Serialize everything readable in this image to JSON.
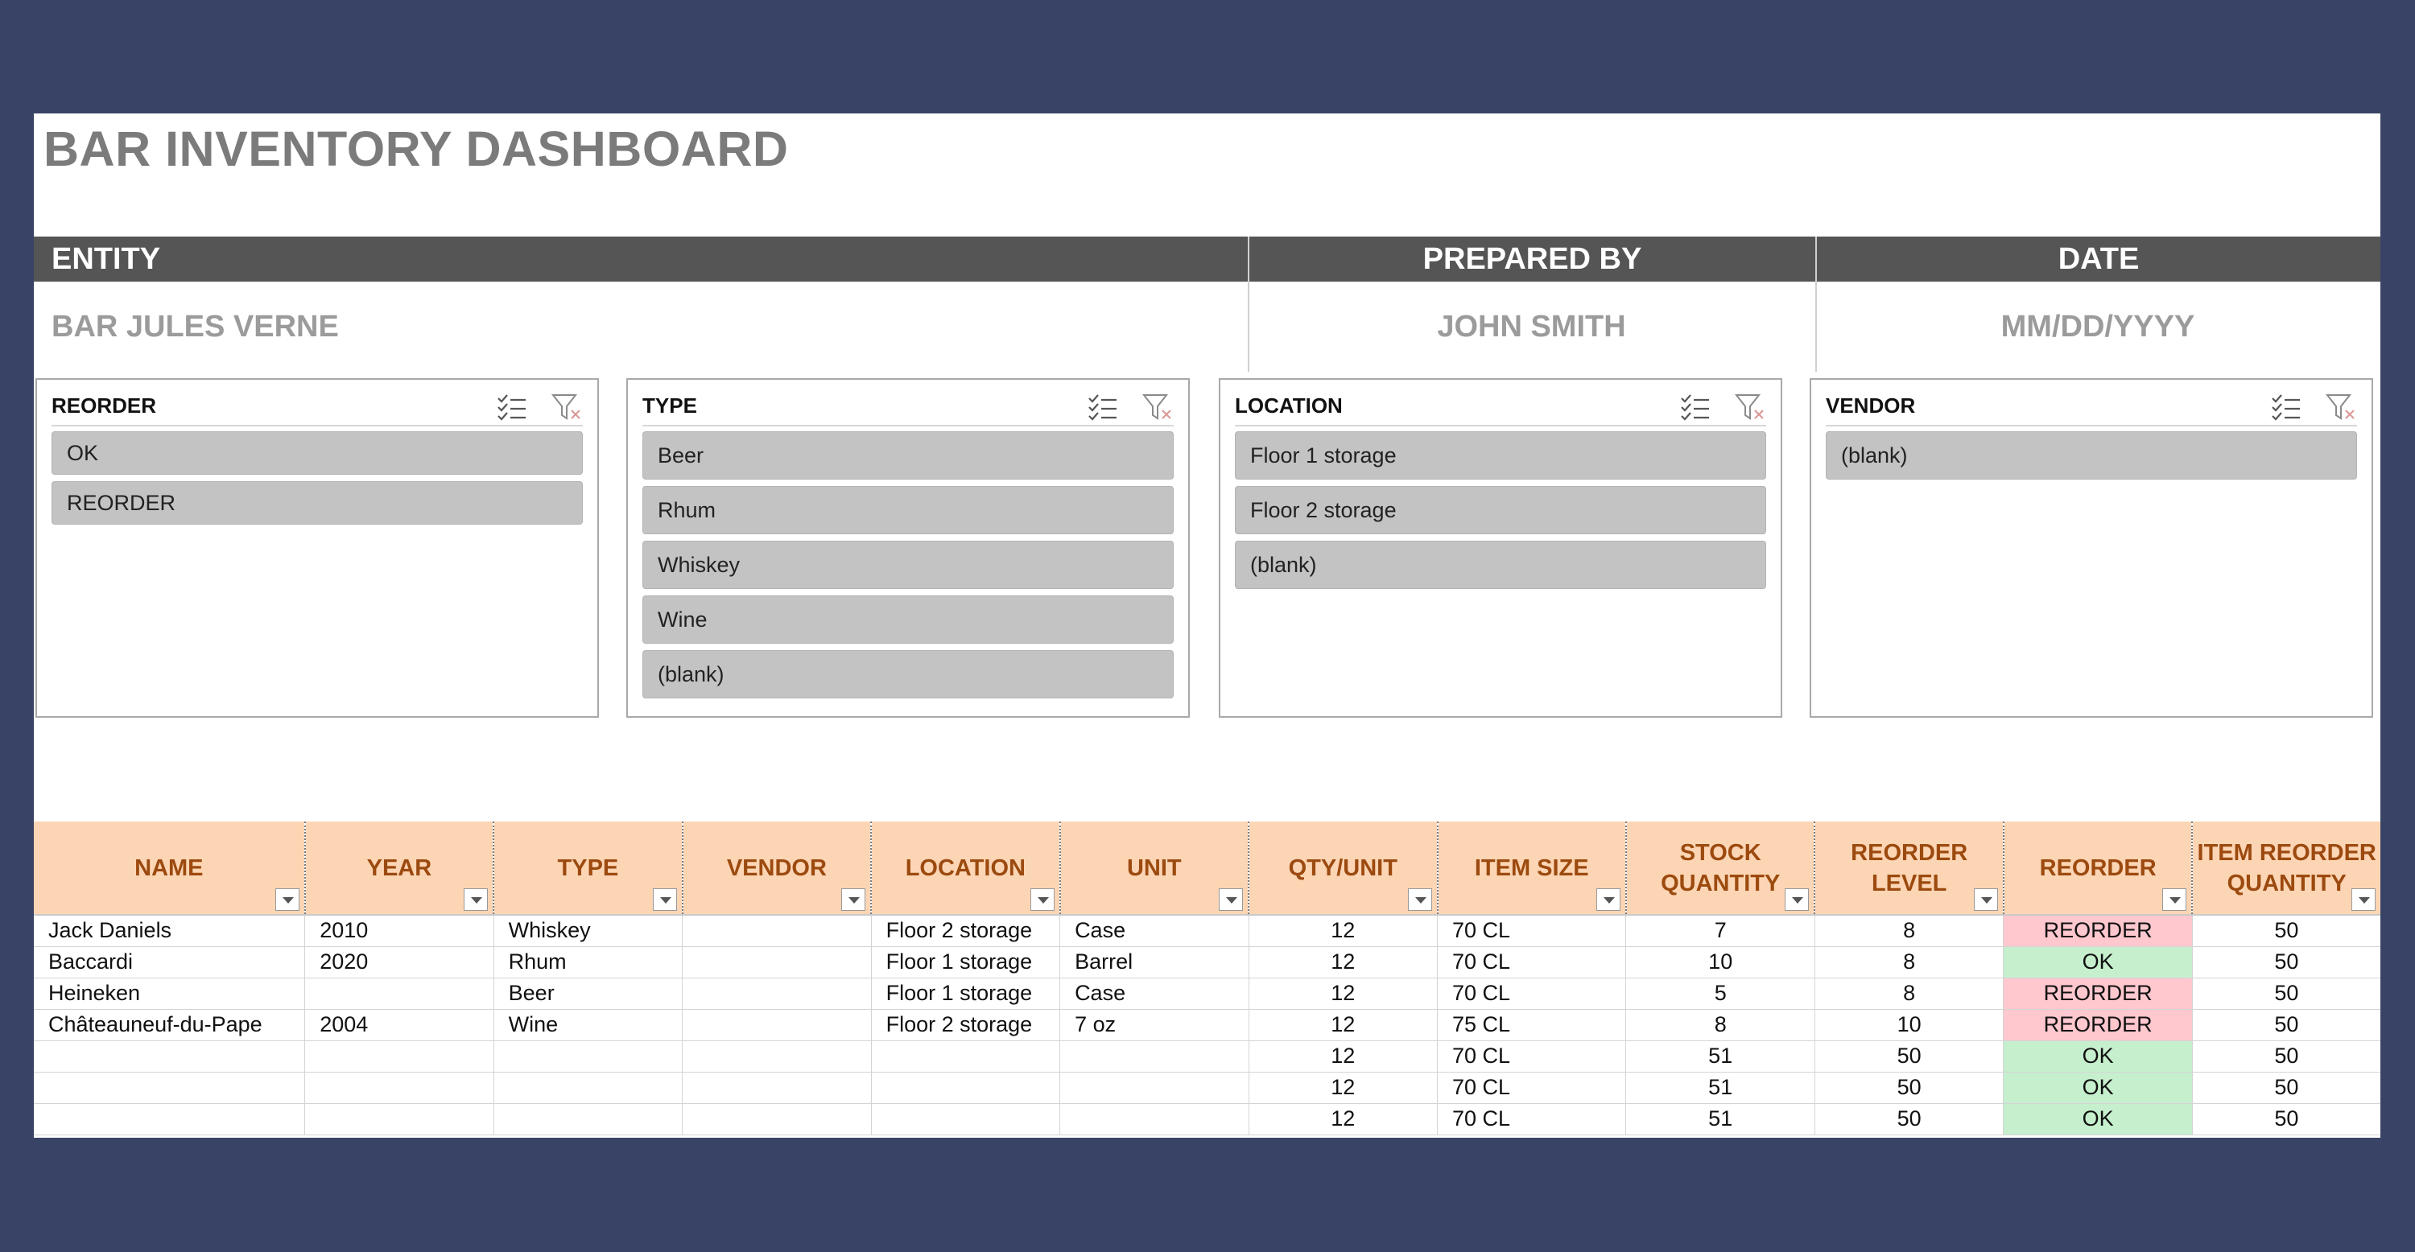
{
  "title": "BAR INVENTORY DASHBOARD",
  "header": {
    "entity_label": "ENTITY",
    "entity_value": "BAR JULES VERNE",
    "prepared_by_label": "PREPARED BY",
    "prepared_by_value": "JOHN SMITH",
    "date_label": "DATE",
    "date_value": "MM/DD/YYYY"
  },
  "slicers": {
    "reorder": {
      "title": "REORDER",
      "items": [
        "OK",
        "REORDER"
      ]
    },
    "type": {
      "title": "TYPE",
      "items": [
        "Beer",
        "Rhum",
        "Whiskey",
        "Wine",
        "(blank)"
      ]
    },
    "location": {
      "title": "LOCATION",
      "items": [
        "Floor 1 storage",
        "Floor 2 storage",
        "(blank)"
      ]
    },
    "vendor": {
      "title": "VENDOR",
      "items": [
        "(blank)"
      ]
    }
  },
  "icons": {
    "multi_select": "multi-select-icon",
    "clear_filter": "clear-filter-icon",
    "dropdown": "filter-dropdown-icon"
  },
  "colors": {
    "background": "#394366",
    "header_bar": "#555555",
    "table_header_bg": "#fcd5b4",
    "table_header_text": "#9c4a0f",
    "reorder_bg": "#ffc7ce",
    "reorder_text": "#9c0006",
    "ok_bg": "#c6efce",
    "ok_text": "#006100"
  },
  "table": {
    "columns": [
      "NAME",
      "YEAR",
      "TYPE",
      "VENDOR",
      "LOCATION",
      "UNIT",
      "QTY/UNIT",
      "ITEM SIZE",
      "STOCK QUANTITY",
      "REORDER LEVEL",
      "REORDER",
      "ITEM REORDER QUANTITY"
    ],
    "rows": [
      [
        "Jack Daniels",
        "2010",
        "Whiskey",
        "",
        "Floor 2 storage",
        "Case",
        "12",
        "70 CL",
        "7",
        "8",
        "REORDER",
        "50"
      ],
      [
        "Baccardi",
        "2020",
        "Rhum",
        "",
        "Floor 1 storage",
        "Barrel",
        "12",
        "70 CL",
        "10",
        "8",
        "OK",
        "50"
      ],
      [
        "Heineken",
        "",
        "Beer",
        "",
        "Floor 1 storage",
        "Case",
        "12",
        "70 CL",
        "5",
        "8",
        "REORDER",
        "50"
      ],
      [
        "Châteauneuf-du-Pape",
        "2004",
        "Wine",
        "",
        "Floor 2 storage",
        "7 oz",
        "12",
        "75 CL",
        "8",
        "10",
        "REORDER",
        "50"
      ],
      [
        "",
        "",
        "",
        "",
        "",
        "",
        "12",
        "70 CL",
        "51",
        "50",
        "OK",
        "50"
      ],
      [
        "",
        "",
        "",
        "",
        "",
        "",
        "12",
        "70 CL",
        "51",
        "50",
        "OK",
        "50"
      ],
      [
        "",
        "",
        "",
        "",
        "",
        "",
        "12",
        "70 CL",
        "51",
        "50",
        "OK",
        "50"
      ]
    ]
  }
}
